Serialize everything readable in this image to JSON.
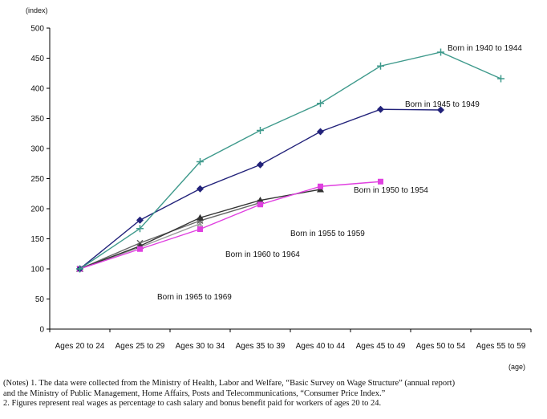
{
  "chart_data": {
    "type": "line",
    "ylabel": "(index)",
    "xlabel": "(age)",
    "ylim": [
      0,
      500
    ],
    "yticks": [
      0,
      50,
      100,
      150,
      200,
      250,
      300,
      350,
      400,
      450,
      500
    ],
    "categories": [
      "Ages 20 to 24",
      "Ages 25 to 29",
      "Ages 30 to 34",
      "Ages 35 to 39",
      "Ages 40 to 44",
      "Ages 45 to 49",
      "Ages 50 to 54",
      "Ages 55 to 59"
    ],
    "series": [
      {
        "name": "Born in 1940 to 1944",
        "color": "#3f9a8c",
        "marker": "plus",
        "values": [
          100,
          167,
          278,
          330,
          375,
          437,
          460,
          416
        ]
      },
      {
        "name": "Born in 1945 to 1949",
        "color": "#22227a",
        "marker": "diamond",
        "values": [
          100,
          181,
          233,
          273,
          328,
          365,
          364,
          null
        ]
      },
      {
        "name": "Born in 1950 to 1954",
        "color": "#e040e0",
        "marker": "square",
        "values": [
          100,
          133,
          166,
          207,
          237,
          245,
          null,
          null
        ]
      },
      {
        "name": "Born in 1955 to 1959",
        "color": "#333333",
        "marker": "triangle",
        "values": [
          100,
          138,
          185,
          214,
          232,
          null,
          null,
          null
        ]
      },
      {
        "name": "Born in 1960 to 1964",
        "color": "#666666",
        "marker": "x",
        "values": [
          100,
          143,
          180,
          210,
          null,
          null,
          null,
          null
        ]
      },
      {
        "name": "Born in 1965 to 1969",
        "color": "#999999",
        "marker": "star",
        "values": [
          100,
          136,
          175,
          null,
          null,
          null,
          null,
          null
        ]
      }
    ]
  },
  "notes": [
    "(Notes) 1. The data were collected from the Ministry of Health, Labor and Welfare, “Basic Survey on Wage Structure” (annual report)",
    "and the Ministry of Public Management, Home Affairs, Posts and Telecommunications, “Consumer Price Index.”",
    "2. Figures represent real wages as percentage to cash salary and bonus benefit paid for workers of ages 20 to 24."
  ]
}
